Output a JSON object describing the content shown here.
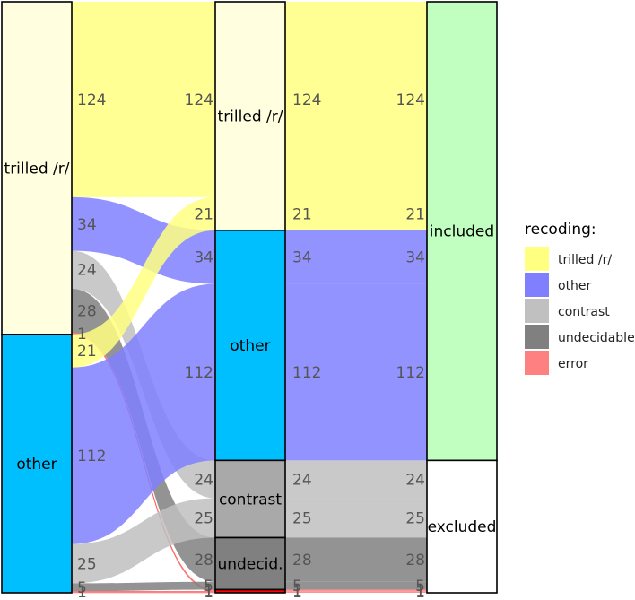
{
  "chart_data": {
    "type": "alluvial",
    "axes": [
      "original",
      "recoding",
      "status"
    ],
    "axis_titles": [
      "",
      "",
      ""
    ],
    "strata": {
      "original": [
        "trilled /r/",
        "other"
      ],
      "recoding": [
        "trilled /r/",
        "other",
        "contrast",
        "undecid.",
        ""
      ],
      "status": [
        "included",
        "excluded"
      ]
    },
    "flows": [
      {
        "from": "trilled /r/",
        "to": "trilled /r/",
        "recoding": "trilled /r/",
        "status": "included",
        "value": 124
      },
      {
        "from": "trilled /r/",
        "to": "other",
        "recoding": "other",
        "status": "included",
        "value": 34
      },
      {
        "from": "trilled /r/",
        "to": "contrast",
        "recoding": "contrast",
        "status": "excluded",
        "value": 24
      },
      {
        "from": "trilled /r/",
        "to": "undecid.",
        "recoding": "undecidable",
        "status": "excluded",
        "value": 28
      },
      {
        "from": "trilled /r/",
        "to": "error",
        "recoding": "error",
        "status": "excluded",
        "value": 1
      },
      {
        "from": "other",
        "to": "trilled /r/",
        "recoding": "trilled /r/",
        "status": "included",
        "value": 21
      },
      {
        "from": "other",
        "to": "other",
        "recoding": "other",
        "status": "included",
        "value": 112
      },
      {
        "from": "other",
        "to": "contrast",
        "recoding": "contrast",
        "status": "excluded",
        "value": 25
      },
      {
        "from": "other",
        "to": "undecid.",
        "recoding": "undecidable",
        "status": "excluded",
        "value": 5
      },
      {
        "from": "other",
        "to": "error",
        "recoding": "error",
        "status": "excluded",
        "value": 1
      }
    ],
    "flow_label_text": {
      "trilled /r/->trilled /r/": "124",
      "trilled /r/->other": "34",
      "trilled /r/->contrast": "24",
      "trilled /r/->undecid.": "28",
      "trilled /r/->error": "1",
      "other->trilled /r/": "21",
      "other->other": "112",
      "other->contrast": "25",
      "other->undecid.": "5",
      "other->error": "1"
    },
    "colors": {
      "trilled /r/": "#ffff80",
      "other": "#8080ff",
      "contrast": "#c0c0c0",
      "undecidable": "#808080",
      "error": "#ff8080",
      "node_original": {
        "trilled /r/": "#ffffe0",
        "other": "#00bfff"
      },
      "node_recoding": {
        "trilled /r/": "#ffffe0",
        "other": "#00bfff",
        "contrast": "#a9a9a9",
        "undecid.": "#808080",
        "": "#ff0000"
      },
      "node_status": {
        "included": "#c1ffc1",
        "excluded": "#ffffff"
      }
    },
    "legend": {
      "title": "recoding:",
      "position": "right",
      "items": [
        {
          "label": "trilled /r/",
          "color": "#ffff80"
        },
        {
          "label": "other",
          "color": "#8080ff"
        },
        {
          "label": "contrast",
          "color": "#c0c0c0"
        },
        {
          "label": "undecidable",
          "color": "#808080"
        },
        {
          "label": "error",
          "color": "#ff8080"
        }
      ]
    }
  }
}
